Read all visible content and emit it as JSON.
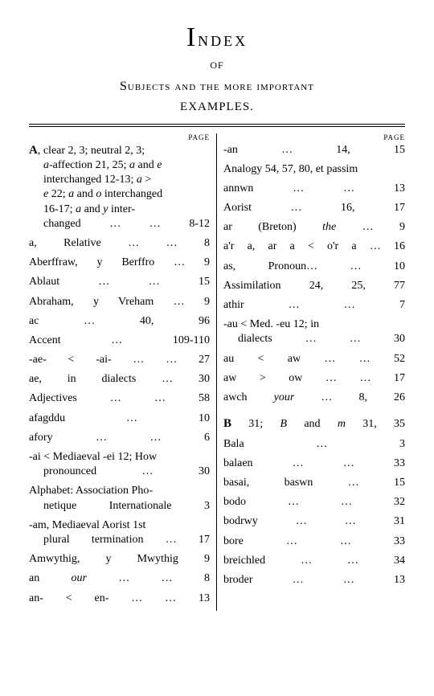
{
  "heading": {
    "main_big": "I",
    "main_rest": "ndex",
    "of": "OF",
    "sub": "Subjects and the more important",
    "examples": "EXAMPLES."
  },
  "page_label": "PAGE",
  "left": {
    "A_block": {
      "lead": "A",
      "text1": ", clear 2, 3; neutral 2, 3;",
      "line2_pre": "a",
      "line2_rest": "-affection 21, 25; ",
      "line2_it": "a",
      "line2_rest2": " and ",
      "line2_it2": "e",
      "line3": "interchanged 12-13; ",
      "line3_it": "a",
      "line3_rest": " >",
      "line4_it": "e",
      "line4_rest": " 22; ",
      "line4_it2": "a",
      "line4_rest2": " and ",
      "line4_it3": "o",
      "line4_rest3": " interchanged",
      "line5": "16-17; ",
      "line5_it": "a",
      "line5_rest": " and ",
      "line5_it2": "y",
      "line5_rest2": " inter-",
      "line6": "changed …",
      "line6_page": "… 8-12"
    },
    "entries": [
      {
        "label": "a, Relative …",
        "dots": "…",
        "page": "8"
      },
      {
        "label": "Aberffraw, y Berffro",
        "dots": "…",
        "page": "9"
      },
      {
        "label": "Ablaut       …",
        "dots": "…",
        "page": "15"
      },
      {
        "label": "Abraham, y Vreham",
        "dots": "…",
        "page": "9"
      },
      {
        "label": "ac              …",
        "dots": "",
        "page": "40, 96"
      },
      {
        "label": "Accent     …",
        "dots": "",
        "page": "109-110"
      },
      {
        "label": "-ae- < -ai-      …",
        "dots": "…",
        "page": "27"
      },
      {
        "label": "ae, in dialects",
        "dots": "…",
        "page": "30"
      },
      {
        "label": "Adjectives …",
        "dots": "…",
        "page": "58"
      },
      {
        "label": "afagddu",
        "dots": "…",
        "page": "10"
      },
      {
        "label": "afory          …",
        "dots": "…",
        "page": "6"
      }
    ],
    "ai": {
      "line1": "-ai < Mediaeval -ei 12; How",
      "line2": "pronounced",
      "dots": "…",
      "page": "30"
    },
    "alpha": {
      "line1": "Alphabet: Association Pho-",
      "line2": "netique Internationale",
      "page": "3"
    },
    "am": {
      "line1": "-am, Mediaeval Aorist 1st",
      "line2": "plural termination …",
      "page": "17"
    },
    "entries2": [
      {
        "label": "Amwythig, y Mwythig",
        "page": "9"
      },
      {
        "label_it": "an ",
        "label_rest": "our",
        "dots": "…       …",
        "page": "8",
        "italic_part": "our",
        "plain_part": "an "
      },
      {
        "label": "an- < en-   …",
        "dots": "…",
        "page": "13"
      }
    ]
  },
  "right": {
    "entries": [
      {
        "label": "-an           …",
        "page": "14, 15"
      },
      {
        "label": "Analogy 54, 57, 80, et passim",
        "page": "",
        "full": true
      },
      {
        "label": "annwn      …",
        "dots": "…",
        "page": "13"
      },
      {
        "label": "Aorist       …",
        "page": "16, 17"
      },
      {
        "label_pre": "ar (Breton) ",
        "label_it": "the",
        "dots": "…",
        "page": "9"
      },
      {
        "label": "a'r a, ar a < o'r a",
        "dots": "…",
        "page": "16"
      },
      {
        "label": "as, Pronoun…",
        "dots": "…",
        "page": "10"
      },
      {
        "label": "Assimilation",
        "page": "24, 25, 77"
      },
      {
        "label": "athir          …",
        "dots": "…",
        "page": "7"
      }
    ],
    "au_block": {
      "line1": "-au < Med. -eu 12; in",
      "line2": "dialects …",
      "dots": "…",
      "page": "30"
    },
    "entries2": [
      {
        "label": "au < aw    …",
        "dots": "…",
        "page": "52"
      },
      {
        "label": "aw > ow    …",
        "dots": "…",
        "page": "17"
      },
      {
        "label_pre": "awch ",
        "label_it": "your",
        "dots": " …",
        "page": "8, 26"
      }
    ],
    "B_block": {
      "lead": "B",
      "rest": " 31; ",
      "it1": "B",
      "mid": " and ",
      "it2": "m",
      "page": "31, 35"
    },
    "entries3": [
      {
        "label": "Bala",
        "dots": "…",
        "page": "3"
      },
      {
        "label": "balaen",
        "dots": "…       …",
        "page": "33"
      },
      {
        "label": "basai, baswn",
        "dots": "…",
        "page": "15"
      },
      {
        "label": "bodo",
        "dots": "…       …",
        "page": "32"
      },
      {
        "label": "bodrwy",
        "dots": "…       …",
        "page": "31"
      },
      {
        "label": "bore",
        "dots": "…       …",
        "page": "33"
      },
      {
        "label": "breichled",
        "dots": "…       …",
        "page": "34"
      },
      {
        "label": "broder",
        "dots": "…       …",
        "page": "13"
      }
    ]
  }
}
